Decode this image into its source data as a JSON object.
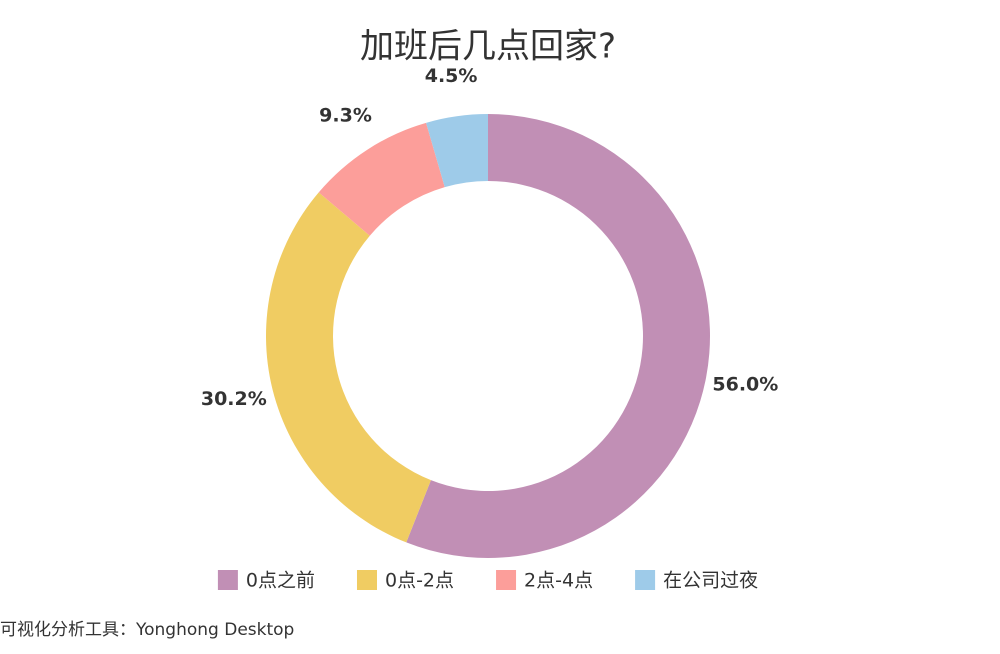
{
  "chart_data": {
    "type": "donut",
    "title": "加班后几点回家?",
    "categories": [
      "0点之前",
      "0点-2点",
      "2点-4点",
      "在公司过夜"
    ],
    "values": [
      56.0,
      30.2,
      9.3,
      4.5
    ],
    "value_labels": [
      "56.0%",
      "30.2%",
      "9.3%",
      "4.5%"
    ],
    "colors": [
      "#c18fb5",
      "#f0cc62",
      "#fc9e9a",
      "#9ecbe9"
    ],
    "legend": "bottom"
  },
  "footer": "可视化分析工具：Yonghong Desktop"
}
